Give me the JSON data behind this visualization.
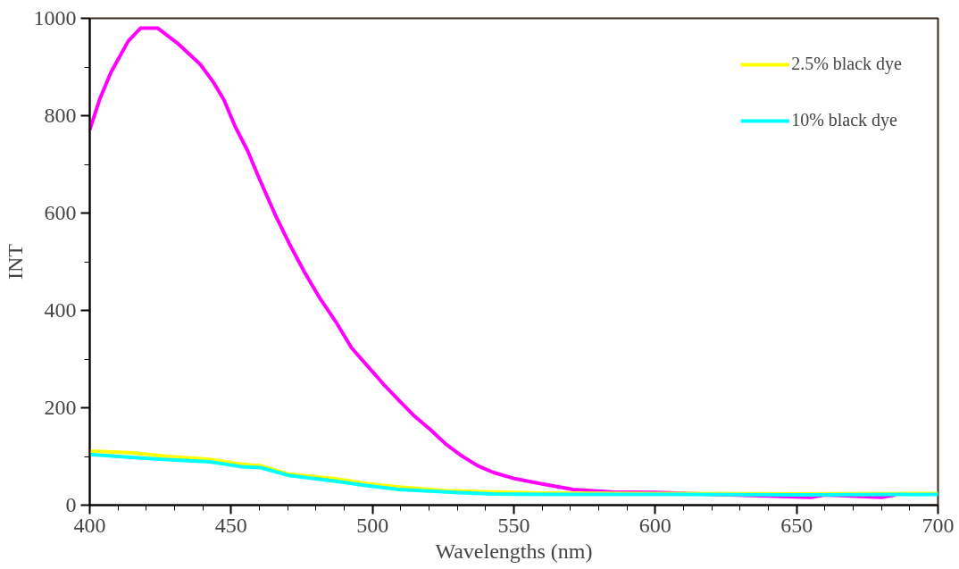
{
  "chart_data": {
    "type": "line",
    "xlabel": "Wavelengths (nm)",
    "ylabel": "INT",
    "xlim": [
      400,
      700
    ],
    "xticks": [
      400,
      450,
      500,
      550,
      600,
      650,
      700
    ],
    "ylim": [
      0,
      1000
    ],
    "yticks": [
      0,
      200,
      400,
      600,
      800,
      1000
    ],
    "grid": false,
    "legend": "top right",
    "marker": "none",
    "line_style": "solid",
    "series": [
      {
        "color": "#ff00ff",
        "x": [
          400,
          403.6,
          407.5,
          413.6,
          418,
          424,
          431,
          439,
          443.7,
          447.5,
          451.4,
          455.9,
          459.8,
          465.4,
          470.4,
          476,
          481.5,
          487,
          492.6,
          498.2,
          503.8,
          509.4,
          515,
          520.5,
          526,
          531.6,
          537.2,
          542.8,
          550.6,
          560.4,
          571,
          584.5,
          600,
          655,
          660,
          680,
          685
        ],
        "values": [
          771,
          835,
          889,
          953,
          980,
          980,
          949,
          906,
          869,
          832,
          778,
          727,
          673,
          599,
          539,
          478,
          424,
          377,
          323,
          286,
          249,
          215,
          182,
          155,
          125,
          101,
          81,
          67,
          54,
          43,
          32,
          27,
          26,
          16,
          21,
          16,
          21
        ]
      },
      {
        "name": "2.5% black dye",
        "color": "#ffff00",
        "x": [
          400,
          414.7,
          425.8,
          442.5,
          453.7,
          460.4,
          470.4,
          487,
          498.2,
          509.4,
          526,
          542.8,
          560,
          600,
          650,
          700
        ],
        "values": [
          111,
          108,
          101,
          94,
          84,
          81,
          64,
          54,
          44,
          37,
          30,
          27,
          25,
          24,
          23,
          24
        ]
      },
      {
        "name": "10% black dye",
        "color": "#00ffff",
        "x": [
          400,
          414.7,
          425.8,
          442.5,
          453.7,
          460.4,
          470.4,
          487,
          498.2,
          509.4,
          526,
          542.8,
          560,
          600,
          650,
          700
        ],
        "values": [
          104,
          98,
          94,
          89,
          79,
          77,
          61,
          49,
          40,
          32,
          27,
          23,
          22,
          22,
          21,
          22
        ]
      }
    ]
  }
}
